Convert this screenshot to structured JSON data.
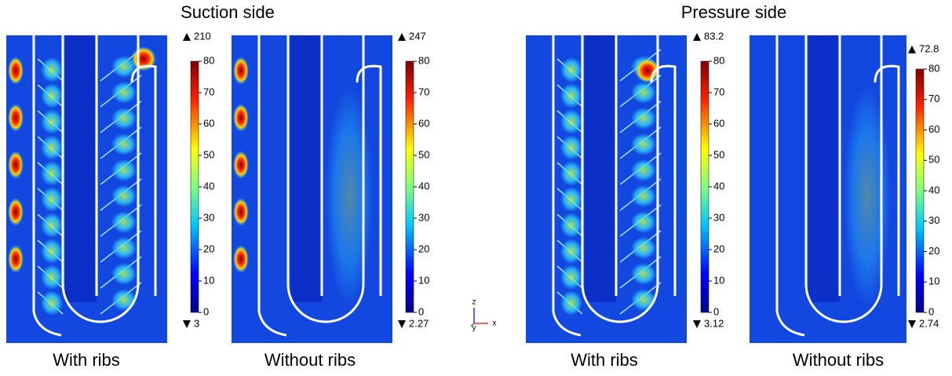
{
  "titles": [
    "Suction side",
    "Pressure side"
  ],
  "panels": [
    {
      "label": "With ribs",
      "max": 210,
      "min": 3,
      "ticks": [
        0,
        10,
        20,
        30,
        40,
        50,
        60,
        70,
        80
      ]
    },
    {
      "label": "Without ribs",
      "max": 247,
      "min": 2.27,
      "ticks": [
        0,
        10,
        20,
        30,
        40,
        50,
        60,
        70,
        80
      ]
    },
    {
      "label": "With ribs",
      "max": 83.2,
      "min": 3.12,
      "ticks": [
        0,
        10,
        20,
        30,
        40,
        50,
        60,
        70,
        80
      ]
    },
    {
      "label": "Without ribs",
      "max": 72.8,
      "min": 2.74,
      "ticks": [
        0,
        10,
        20,
        30,
        40,
        50,
        60,
        70,
        80
      ]
    }
  ],
  "axes_indicator": [
    "z",
    "y",
    "x"
  ]
}
